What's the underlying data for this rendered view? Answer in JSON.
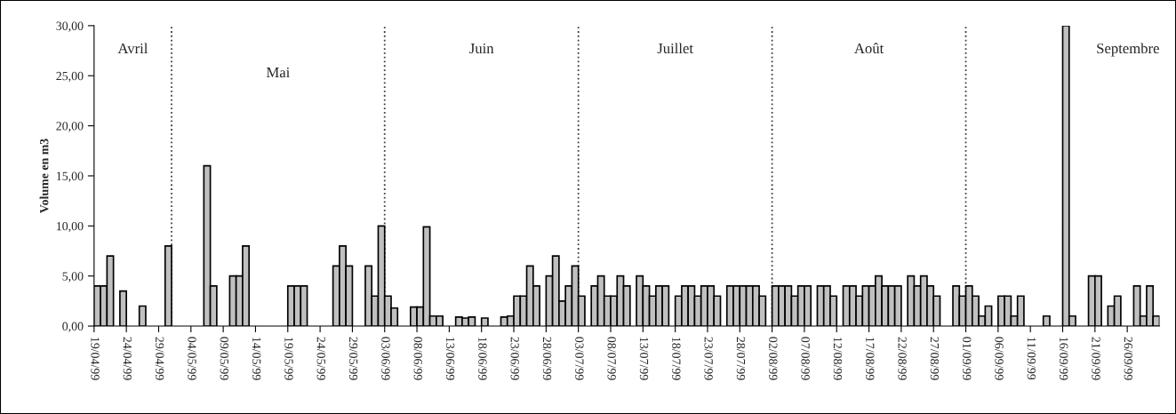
{
  "chart_data": {
    "type": "bar",
    "ylabel": "Volume en m3",
    "x": [
      "1999-04-19",
      "1999-04-20",
      "1999-04-21",
      "1999-04-23",
      "1999-04-26",
      "1999-04-30",
      "1999-05-06",
      "1999-05-07",
      "1999-05-10",
      "1999-05-11",
      "1999-05-12",
      "1999-05-19",
      "1999-05-20",
      "1999-05-21",
      "1999-05-26",
      "1999-05-27",
      "1999-05-28",
      "1999-05-31",
      "1999-06-01",
      "1999-06-02",
      "1999-06-03",
      "1999-06-04",
      "1999-06-07",
      "1999-06-08",
      "1999-06-09",
      "1999-06-10",
      "1999-06-11",
      "1999-06-14",
      "1999-06-15",
      "1999-06-16",
      "1999-06-18",
      "1999-06-21",
      "1999-06-22",
      "1999-06-23",
      "1999-06-24",
      "1999-06-25",
      "1999-06-26",
      "1999-06-28",
      "1999-06-29",
      "1999-06-30",
      "1999-07-01",
      "1999-07-02",
      "1999-07-03",
      "1999-07-05",
      "1999-07-06",
      "1999-07-07",
      "1999-07-08",
      "1999-07-09",
      "1999-07-10",
      "1999-07-12",
      "1999-07-13",
      "1999-07-14",
      "1999-07-15",
      "1999-07-16",
      "1999-07-18",
      "1999-07-19",
      "1999-07-20",
      "1999-07-21",
      "1999-07-22",
      "1999-07-23",
      "1999-07-24",
      "1999-07-26",
      "1999-07-27",
      "1999-07-28",
      "1999-07-29",
      "1999-07-30",
      "1999-07-31",
      "1999-08-02",
      "1999-08-03",
      "1999-08-04",
      "1999-08-05",
      "1999-08-06",
      "1999-08-07",
      "1999-08-09",
      "1999-08-10",
      "1999-08-11",
      "1999-08-13",
      "1999-08-14",
      "1999-08-15",
      "1999-08-16",
      "1999-08-17",
      "1999-08-18",
      "1999-08-19",
      "1999-08-20",
      "1999-08-21",
      "1999-08-23",
      "1999-08-24",
      "1999-08-25",
      "1999-08-26",
      "1999-08-27",
      "1999-08-30",
      "1999-08-31",
      "1999-09-01",
      "1999-09-02",
      "1999-09-03",
      "1999-09-04",
      "1999-09-06",
      "1999-09-07",
      "1999-09-08",
      "1999-09-09",
      "1999-09-13",
      "1999-09-16",
      "1999-09-17",
      "1999-09-20",
      "1999-09-21",
      "1999-09-23",
      "1999-09-24",
      "1999-09-27",
      "1999-09-28",
      "1999-09-29",
      "1999-09-30"
    ],
    "values": [
      4,
      4,
      7,
      3.5,
      2,
      8,
      16,
      4,
      5,
      5,
      8,
      4,
      4,
      4,
      6,
      8,
      6,
      6,
      3,
      10,
      3,
      1.8,
      1.9,
      1.9,
      9.9,
      1,
      1,
      0.9,
      0.8,
      0.9,
      0.8,
      0.9,
      1,
      3,
      3,
      6,
      4,
      5,
      7,
      2.5,
      4,
      6,
      3,
      4,
      5,
      3,
      3,
      5,
      4,
      5,
      4,
      3,
      4,
      4,
      3,
      4,
      4,
      3,
      4,
      4,
      3,
      4,
      4,
      4,
      4,
      4,
      3,
      4,
      4,
      4,
      3,
      4,
      4,
      4,
      4,
      3,
      4,
      4,
      3,
      4,
      4,
      5,
      4,
      4,
      4,
      5,
      4,
      5,
      4,
      3,
      4,
      3,
      4,
      3,
      1,
      2,
      3,
      3,
      1,
      3,
      1,
      30,
      1,
      5,
      5,
      2,
      3,
      4,
      1,
      4,
      1
    ],
    "color": "#c0c0c0",
    "xlim": [
      "1999-04-19",
      "1999-10-01"
    ],
    "xticks": [
      {
        "value": "1999-04-19",
        "label": "19/04/99"
      },
      {
        "value": "1999-04-24",
        "label": "24/04/99"
      },
      {
        "value": "1999-04-29",
        "label": "29/04/99"
      },
      {
        "value": "1999-05-04",
        "label": "04/05/99"
      },
      {
        "value": "1999-05-09",
        "label": "09/05/99"
      },
      {
        "value": "1999-05-14",
        "label": "14/05/99"
      },
      {
        "value": "1999-05-19",
        "label": "19/05/99"
      },
      {
        "value": "1999-05-24",
        "label": "24/05/99"
      },
      {
        "value": "1999-05-29",
        "label": "29/05/99"
      },
      {
        "value": "1999-06-03",
        "label": "03/06/99"
      },
      {
        "value": "1999-06-08",
        "label": "08/06/99"
      },
      {
        "value": "1999-06-13",
        "label": "13/06/99"
      },
      {
        "value": "1999-06-18",
        "label": "18/06/99"
      },
      {
        "value": "1999-06-23",
        "label": "23/06/99"
      },
      {
        "value": "1999-06-28",
        "label": "28/06/99"
      },
      {
        "value": "1999-07-03",
        "label": "03/07/99"
      },
      {
        "value": "1999-07-08",
        "label": "08/07/99"
      },
      {
        "value": "1999-07-13",
        "label": "13/07/99"
      },
      {
        "value": "1999-07-18",
        "label": "18/07/99"
      },
      {
        "value": "1999-07-23",
        "label": "23/07/99"
      },
      {
        "value": "1999-07-28",
        "label": "28/07/99"
      },
      {
        "value": "1999-08-02",
        "label": "02/08/99"
      },
      {
        "value": "1999-08-07",
        "label": "07/08/99"
      },
      {
        "value": "1999-08-12",
        "label": "12/08/99"
      },
      {
        "value": "1999-08-17",
        "label": "17/08/99"
      },
      {
        "value": "1999-08-22",
        "label": "22/08/99"
      },
      {
        "value": "1999-08-27",
        "label": "27/08/99"
      },
      {
        "value": "1999-09-01",
        "label": "01/09/99"
      },
      {
        "value": "1999-09-06",
        "label": "06/09/99"
      },
      {
        "value": "1999-09-11",
        "label": "11/09/99"
      },
      {
        "value": "1999-09-16",
        "label": "16/09/99"
      },
      {
        "value": "1999-09-21",
        "label": "21/09/99"
      },
      {
        "value": "1999-09-26",
        "label": "26/09/99"
      }
    ],
    "ylim": [
      0,
      30
    ],
    "yticks": [
      {
        "value": 0,
        "label": "0,00"
      },
      {
        "value": 5,
        "label": "5,00"
      },
      {
        "value": 10,
        "label": "10,00"
      },
      {
        "value": 15,
        "label": "15,00"
      },
      {
        "value": 20,
        "label": "20,00"
      },
      {
        "value": 25,
        "label": "25,00"
      },
      {
        "value": 30,
        "label": "30,00"
      }
    ],
    "grid": false,
    "legend": false,
    "ref_lines": [
      {
        "axis": "x",
        "value": "1999-05-01",
        "color": "#404040",
        "line_style": "dotted"
      },
      {
        "axis": "x",
        "value": "1999-06-03",
        "color": "#404040",
        "line_style": "dotted"
      },
      {
        "axis": "x",
        "value": "1999-07-03",
        "color": "#404040",
        "line_style": "dotted"
      },
      {
        "axis": "x",
        "value": "1999-08-02",
        "color": "#404040",
        "line_style": "dotted"
      },
      {
        "axis": "x",
        "value": "1999-09-01",
        "color": "#404040",
        "line_style": "dotted"
      }
    ],
    "annotations": [
      "Avril",
      "Mai",
      "Juin",
      "Juillet",
      "Août",
      "Septembre"
    ]
  }
}
